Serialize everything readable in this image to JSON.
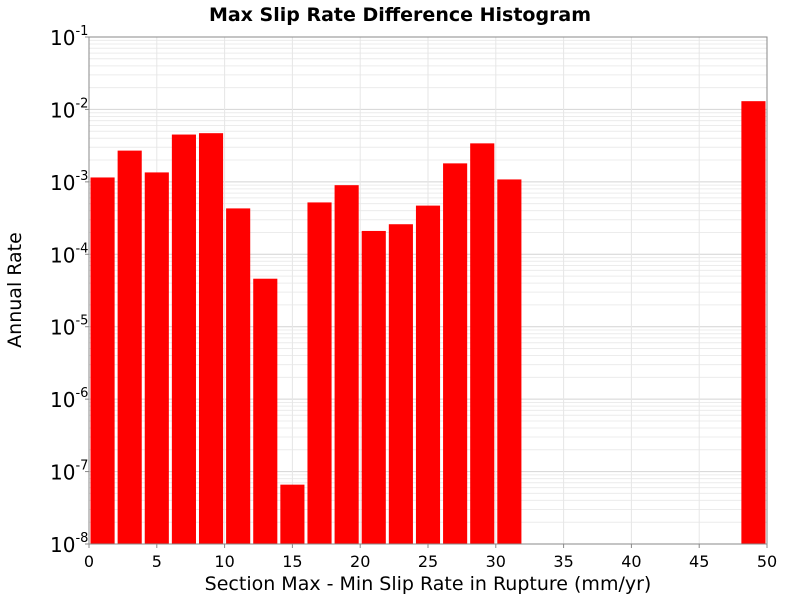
{
  "chart_data": {
    "type": "bar",
    "title": "Max Slip Rate Difference Histogram",
    "xlabel": "Section Max - Min Slip Rate in Rupture (mm/yr)",
    "ylabel": "Annual Rate",
    "xlim": [
      0,
      50
    ],
    "ylim": [
      1e-08,
      0.1
    ],
    "yscale": "log",
    "grid": true,
    "bar_color": "#ff0000",
    "bin_width": 2,
    "x_ticks": [
      "0",
      "5",
      "10",
      "15",
      "20",
      "25",
      "30",
      "35",
      "40",
      "45",
      "50"
    ],
    "y_ticks": [
      {
        "base": "10",
        "exp": "-1"
      },
      {
        "base": "10",
        "exp": "-2"
      },
      {
        "base": "10",
        "exp": "-3"
      },
      {
        "base": "10",
        "exp": "-4"
      },
      {
        "base": "10",
        "exp": "-5"
      },
      {
        "base": "10",
        "exp": "-6"
      },
      {
        "base": "10",
        "exp": "-7"
      },
      {
        "base": "10",
        "exp": "-8"
      }
    ],
    "bars": [
      {
        "x": 1,
        "value": 0.00115
      },
      {
        "x": 3,
        "value": 0.0027
      },
      {
        "x": 5,
        "value": 0.00135
      },
      {
        "x": 7,
        "value": 0.0045
      },
      {
        "x": 9,
        "value": 0.0047
      },
      {
        "x": 11,
        "value": 0.00043
      },
      {
        "x": 13,
        "value": 4.6e-05
      },
      {
        "x": 15,
        "value": 6.6e-08
      },
      {
        "x": 17,
        "value": 0.00052
      },
      {
        "x": 19,
        "value": 0.0009
      },
      {
        "x": 21,
        "value": 0.00021
      },
      {
        "x": 23,
        "value": 0.00026
      },
      {
        "x": 25,
        "value": 0.00047
      },
      {
        "x": 27,
        "value": 0.0018
      },
      {
        "x": 29,
        "value": 0.0034
      },
      {
        "x": 31,
        "value": 0.00108
      },
      {
        "x": 49,
        "value": 0.013
      }
    ]
  }
}
